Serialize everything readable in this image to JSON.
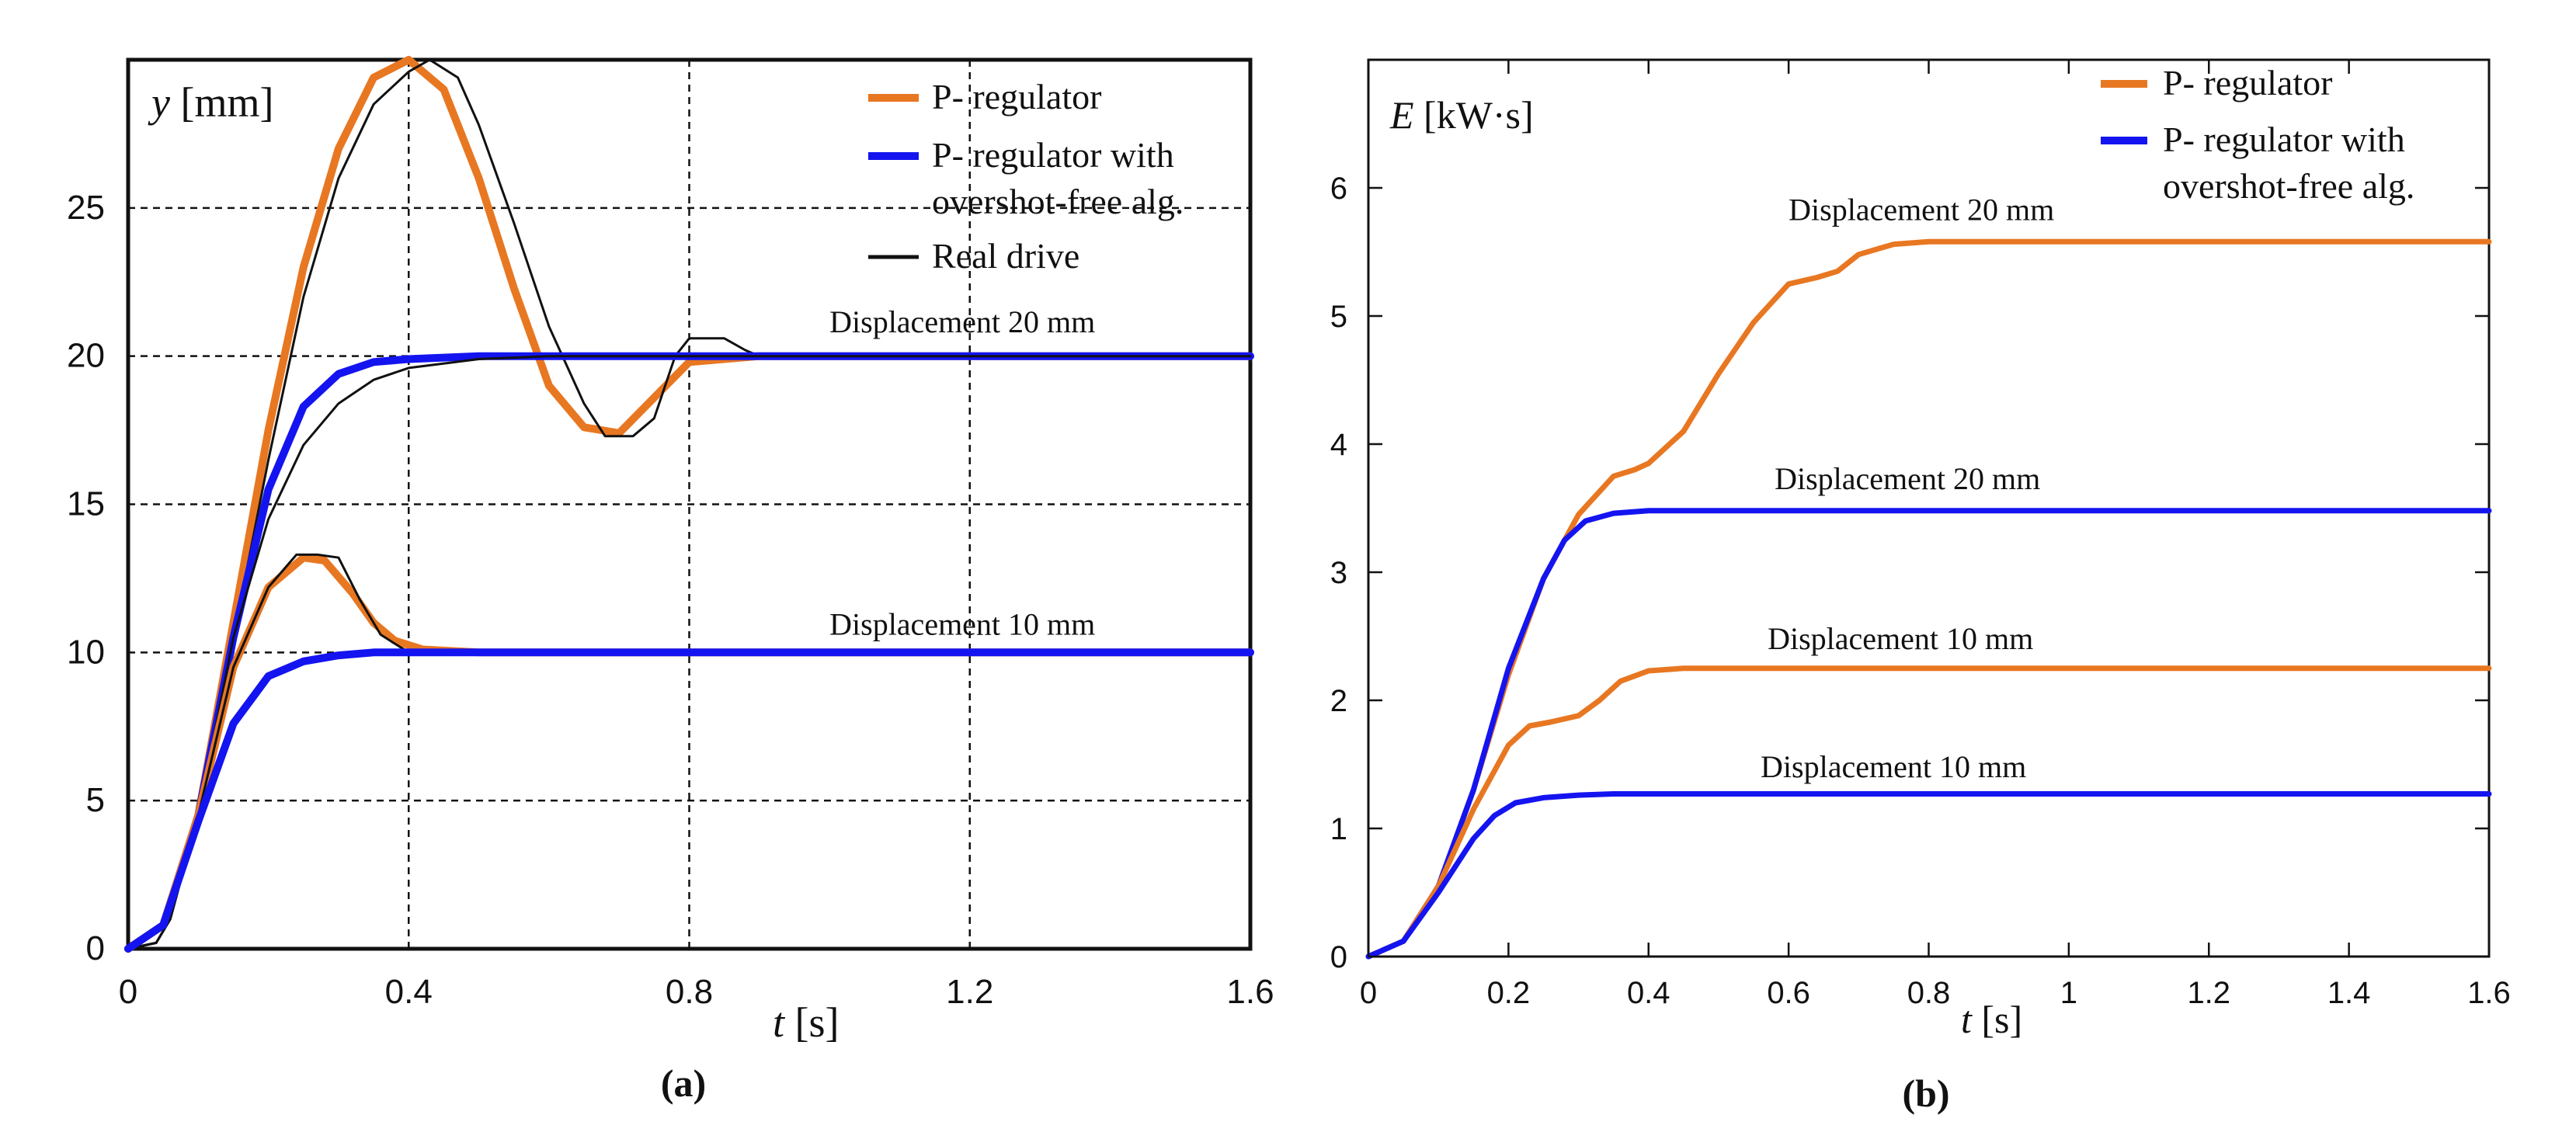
{
  "colors": {
    "p_regulator": "#E87722",
    "overshoot_free": "#1414F0",
    "real_drive": "#111111"
  },
  "chart_data": [
    {
      "id": "a",
      "type": "line",
      "caption": "(a)",
      "ylabel_var": "y",
      "ylabel_unit": "[mm]",
      "xlabel_var": "t",
      "xlabel_unit": "[s]",
      "xlim": [
        0,
        1.6
      ],
      "ylim": [
        0,
        30
      ],
      "x_ticks": [
        0,
        0.4,
        0.8,
        1.2,
        1.6
      ],
      "x_tick_labels": [
        "0",
        "0.4",
        "0.8",
        "1.2",
        "1.6"
      ],
      "y_ticks": [
        0,
        5,
        10,
        15,
        20,
        25
      ],
      "y_tick_labels": [
        "0",
        "5",
        "10",
        "15",
        "20",
        "25"
      ],
      "grid": true,
      "legend": [
        {
          "lines": [
            "P- regulator"
          ],
          "color": "#E87722"
        },
        {
          "lines": [
            "P- regulator with",
            "overshot-free alg."
          ],
          "color": "#1414F0"
        },
        {
          "lines": [
            "Real drive"
          ],
          "color": "#111111"
        }
      ],
      "annotations": [
        {
          "text": "Displacement 20 mm",
          "x": 1.0,
          "y": 20.8
        },
        {
          "text": "Displacement 10 mm",
          "x": 1.0,
          "y": 10.6
        }
      ],
      "series": [
        {
          "name": "P- regulator 20 mm",
          "color": "#E87722",
          "width": 10,
          "x": [
            0,
            0.05,
            0.1,
            0.15,
            0.2,
            0.25,
            0.3,
            0.35,
            0.4,
            0.45,
            0.5,
            0.55,
            0.6,
            0.65,
            0.7,
            0.75,
            0.8,
            0.9,
            1.0,
            1.2,
            1.4,
            1.6
          ],
          "y": [
            0,
            0.8,
            4.5,
            11,
            17.5,
            23,
            27,
            29.4,
            30,
            29,
            26,
            22.3,
            19,
            17.6,
            17.4,
            18.6,
            19.8,
            20,
            20,
            20,
            20,
            20
          ]
        },
        {
          "name": "Real drive 20 mm",
          "color": "#111111",
          "width": 3,
          "x": [
            0,
            0.04,
            0.06,
            0.1,
            0.15,
            0.2,
            0.25,
            0.3,
            0.35,
            0.4,
            0.43,
            0.47,
            0.5,
            0.55,
            0.6,
            0.65,
            0.68,
            0.72,
            0.75,
            0.78,
            0.8,
            0.85,
            0.88,
            0.9,
            1.0,
            1.6
          ],
          "y": [
            0,
            0.2,
            1,
            4.5,
            10.5,
            16.5,
            22,
            26,
            28.5,
            29.6,
            30,
            29.4,
            27.8,
            24.5,
            21,
            18.4,
            17.3,
            17.3,
            17.9,
            20,
            20.6,
            20.6,
            20.2,
            20,
            20,
            20
          ]
        },
        {
          "name": "Overshoot-free 20 mm",
          "color": "#1414F0",
          "width": 10,
          "x": [
            0,
            0.05,
            0.1,
            0.15,
            0.2,
            0.25,
            0.3,
            0.35,
            0.4,
            0.5,
            0.6,
            0.8,
            1.0,
            1.2,
            1.4,
            1.6
          ],
          "y": [
            0,
            0.8,
            4.5,
            10.5,
            15.5,
            18.3,
            19.4,
            19.8,
            19.9,
            20,
            20,
            20,
            20,
            20,
            20,
            20
          ]
        },
        {
          "name": "Real drive 20 mm overshoot-free",
          "color": "#111111",
          "width": 3,
          "x": [
            0,
            0.04,
            0.06,
            0.1,
            0.15,
            0.2,
            0.25,
            0.3,
            0.35,
            0.4,
            0.5,
            0.6,
            1.6
          ],
          "y": [
            0,
            0.2,
            1,
            4.5,
            10.5,
            14.5,
            17,
            18.4,
            19.2,
            19.6,
            19.9,
            20,
            20
          ]
        },
        {
          "name": "P- regulator 10 mm",
          "color": "#E87722",
          "width": 10,
          "x": [
            0,
            0.05,
            0.1,
            0.15,
            0.2,
            0.25,
            0.28,
            0.32,
            0.35,
            0.38,
            0.42,
            0.5,
            0.6,
            0.8,
            1.0,
            1.2,
            1.4,
            1.6
          ],
          "y": [
            0,
            0.8,
            4.5,
            9.5,
            12.2,
            13.2,
            13.1,
            12,
            11,
            10.4,
            10.1,
            10,
            10,
            10,
            10,
            10,
            10,
            10
          ]
        },
        {
          "name": "Real drive 10 mm",
          "color": "#111111",
          "width": 3,
          "x": [
            0,
            0.04,
            0.06,
            0.1,
            0.15,
            0.2,
            0.24,
            0.27,
            0.3,
            0.33,
            0.36,
            0.4,
            0.5,
            1.6
          ],
          "y": [
            0,
            0.2,
            1,
            4.5,
            9.5,
            12.2,
            13.3,
            13.3,
            13.2,
            11.8,
            10.6,
            10,
            10,
            10
          ]
        },
        {
          "name": "Overshoot-free 10 mm",
          "color": "#1414F0",
          "width": 10,
          "x": [
            0,
            0.05,
            0.1,
            0.15,
            0.2,
            0.25,
            0.3,
            0.35,
            0.4,
            0.5,
            0.6,
            0.8,
            1.0,
            1.2,
            1.4,
            1.6
          ],
          "y": [
            0,
            0.8,
            4.3,
            7.6,
            9.2,
            9.7,
            9.9,
            10,
            10,
            10,
            10,
            10,
            10,
            10,
            10,
            10
          ]
        }
      ]
    },
    {
      "id": "b",
      "type": "line",
      "caption": "(b)",
      "ylabel_var": "E",
      "ylabel_unit": "[kW·s]",
      "xlabel_var": "t",
      "xlabel_unit": "[s]",
      "xlim": [
        0,
        1.6
      ],
      "ylim": [
        0,
        7
      ],
      "x_ticks": [
        0,
        0.2,
        0.4,
        0.6,
        0.8,
        1,
        1.2,
        1.4,
        1.6
      ],
      "x_tick_labels": [
        "0",
        "0.2",
        "0.4",
        "0.6",
        "0.8",
        "1",
        "1.2",
        "1.4",
        "1.6"
      ],
      "y_ticks": [
        0,
        1,
        2,
        3,
        4,
        5,
        6
      ],
      "y_tick_labels": [
        "0",
        "1",
        "2",
        "3",
        "4",
        "5",
        "6"
      ],
      "grid": false,
      "legend": [
        {
          "lines": [
            "P- regulator"
          ],
          "color": "#E87722"
        },
        {
          "lines": [
            "P- regulator with",
            "overshot-free alg."
          ],
          "color": "#1414F0"
        }
      ],
      "annotations": [
        {
          "text": "Displacement 20 mm",
          "x": 0.6,
          "y": 5.75
        },
        {
          "text": "Displacement 20 mm",
          "x": 0.58,
          "y": 3.65
        },
        {
          "text": "Displacement 10 mm",
          "x": 0.57,
          "y": 2.4
        },
        {
          "text": "Displacement 10 mm",
          "x": 0.56,
          "y": 1.4
        }
      ],
      "series": [
        {
          "name": "P- regulator 20 mm",
          "color": "#E87722",
          "width": 7,
          "x": [
            0,
            0.05,
            0.1,
            0.15,
            0.2,
            0.25,
            0.3,
            0.35,
            0.38,
            0.4,
            0.45,
            0.5,
            0.55,
            0.6,
            0.64,
            0.67,
            0.7,
            0.75,
            0.8,
            0.9,
            1.0,
            1.2,
            1.4,
            1.6
          ],
          "y": [
            0,
            0.12,
            0.55,
            1.3,
            2.2,
            2.95,
            3.45,
            3.75,
            3.8,
            3.85,
            4.1,
            4.55,
            4.95,
            5.25,
            5.3,
            5.35,
            5.48,
            5.56,
            5.58,
            5.58,
            5.58,
            5.58,
            5.58,
            5.58
          ]
        },
        {
          "name": "Overshoot-free 20 mm",
          "color": "#1414F0",
          "width": 7,
          "x": [
            0,
            0.05,
            0.1,
            0.15,
            0.2,
            0.25,
            0.28,
            0.31,
            0.35,
            0.4,
            0.5,
            0.6,
            0.8,
            1.0,
            1.2,
            1.4,
            1.6
          ],
          "y": [
            0,
            0.12,
            0.55,
            1.3,
            2.25,
            2.95,
            3.25,
            3.4,
            3.46,
            3.48,
            3.48,
            3.48,
            3.48,
            3.48,
            3.48,
            3.48,
            3.48
          ]
        },
        {
          "name": "P- regulator 10 mm",
          "color": "#E87722",
          "width": 7,
          "x": [
            0,
            0.05,
            0.1,
            0.15,
            0.2,
            0.23,
            0.26,
            0.3,
            0.33,
            0.36,
            0.4,
            0.45,
            0.5,
            0.6,
            0.8,
            1.0,
            1.2,
            1.4,
            1.6
          ],
          "y": [
            0,
            0.12,
            0.55,
            1.15,
            1.65,
            1.8,
            1.83,
            1.88,
            2.0,
            2.15,
            2.23,
            2.25,
            2.25,
            2.25,
            2.25,
            2.25,
            2.25,
            2.25,
            2.25
          ]
        },
        {
          "name": "Overshoot-free 10 mm",
          "color": "#1414F0",
          "width": 7,
          "x": [
            0,
            0.05,
            0.1,
            0.15,
            0.18,
            0.21,
            0.25,
            0.3,
            0.35,
            0.4,
            0.5,
            0.6,
            0.8,
            1.0,
            1.2,
            1.4,
            1.6
          ],
          "y": [
            0,
            0.12,
            0.5,
            0.92,
            1.1,
            1.2,
            1.24,
            1.26,
            1.27,
            1.27,
            1.27,
            1.27,
            1.27,
            1.27,
            1.27,
            1.27,
            1.27
          ]
        }
      ]
    }
  ]
}
